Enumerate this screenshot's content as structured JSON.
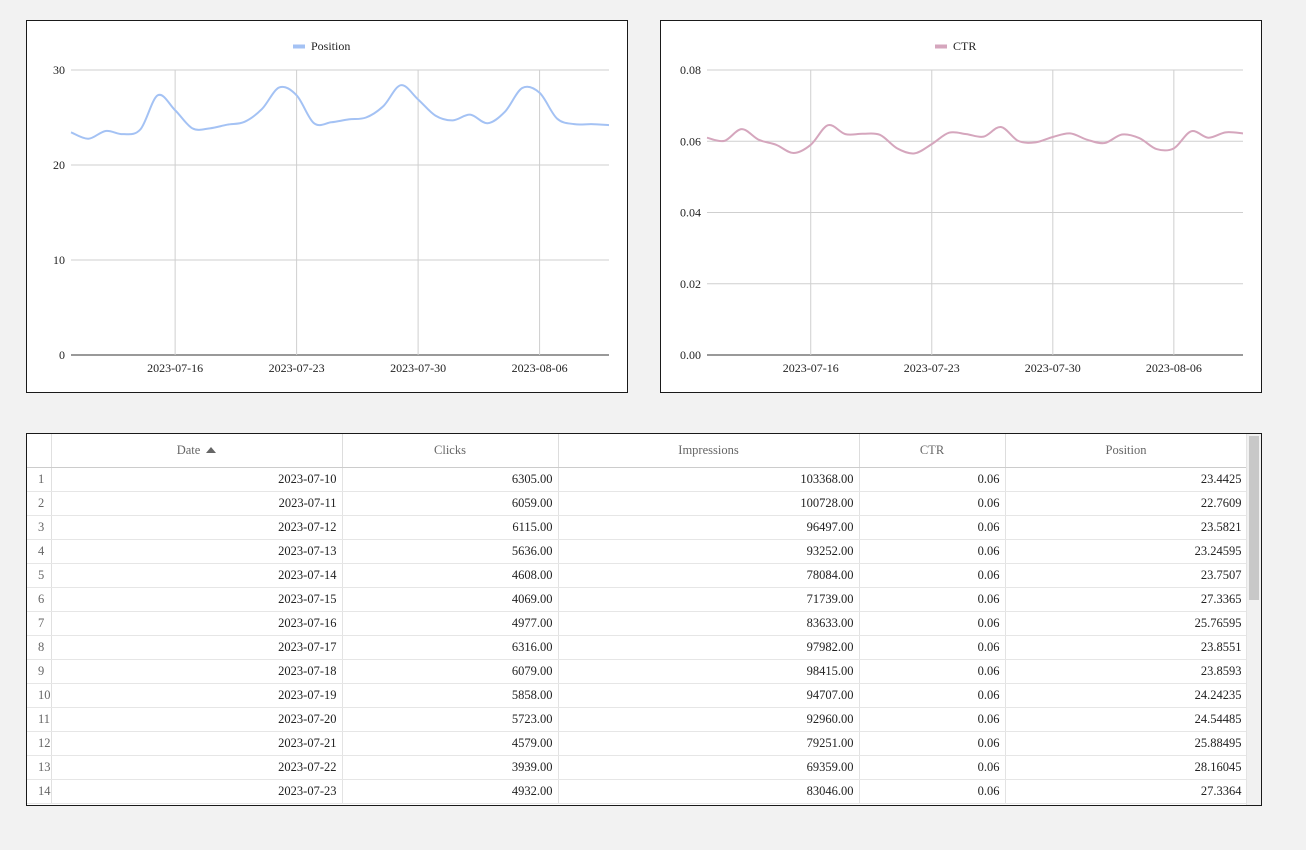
{
  "chart_data": [
    {
      "type": "line",
      "title": "",
      "xlabel": "",
      "ylabel": "",
      "series": [
        {
          "name": "Position",
          "color": "#a4c2f4",
          "x": [
            "2023-07-10",
            "2023-07-11",
            "2023-07-12",
            "2023-07-13",
            "2023-07-14",
            "2023-07-15",
            "2023-07-16",
            "2023-07-17",
            "2023-07-18",
            "2023-07-19",
            "2023-07-20",
            "2023-07-21",
            "2023-07-22",
            "2023-07-23",
            "2023-07-24",
            "2023-07-25",
            "2023-07-26",
            "2023-07-27",
            "2023-07-28",
            "2023-07-29",
            "2023-07-30",
            "2023-07-31",
            "2023-08-01",
            "2023-08-02",
            "2023-08-03",
            "2023-08-04",
            "2023-08-05",
            "2023-08-06",
            "2023-08-07",
            "2023-08-08",
            "2023-08-09",
            "2023-08-10"
          ],
          "values": [
            23.4425,
            22.7609,
            23.5821,
            23.24595,
            23.7507,
            27.3365,
            25.76595,
            23.8551,
            23.8593,
            24.24235,
            24.54485,
            25.88495,
            28.16045,
            27.3364,
            24.4,
            24.5,
            24.8,
            25.0,
            26.2,
            28.4,
            26.9,
            25.2,
            24.7,
            25.3,
            24.4,
            25.6,
            28.1,
            27.6,
            24.9,
            24.3,
            24.3,
            24.2
          ]
        }
      ],
      "ylim": [
        0,
        30
      ],
      "yticks": [
        "0",
        "10",
        "20",
        "30"
      ],
      "xticks": [
        "2023-07-16",
        "2023-07-23",
        "2023-07-30",
        "2023-08-06"
      ],
      "grid": true,
      "legend": "top-center"
    },
    {
      "type": "line",
      "title": "",
      "xlabel": "",
      "ylabel": "",
      "series": [
        {
          "name": "CTR",
          "color": "#d5a6bd",
          "x": [
            "2023-07-10",
            "2023-07-11",
            "2023-07-12",
            "2023-07-13",
            "2023-07-14",
            "2023-07-15",
            "2023-07-16",
            "2023-07-17",
            "2023-07-18",
            "2023-07-19",
            "2023-07-20",
            "2023-07-21",
            "2023-07-22",
            "2023-07-23",
            "2023-07-24",
            "2023-07-25",
            "2023-07-26",
            "2023-07-27",
            "2023-07-28",
            "2023-07-29",
            "2023-07-30",
            "2023-07-31",
            "2023-08-01",
            "2023-08-02",
            "2023-08-03",
            "2023-08-04",
            "2023-08-05",
            "2023-08-06",
            "2023-08-07",
            "2023-08-08",
            "2023-08-09",
            "2023-08-10"
          ],
          "values": [
            0.061,
            0.0601,
            0.0634,
            0.0604,
            0.059,
            0.0567,
            0.059,
            0.0645,
            0.062,
            0.0621,
            0.0618,
            0.058,
            0.0566,
            0.0592,
            0.0624,
            0.062,
            0.0613,
            0.064,
            0.0601,
            0.0597,
            0.0612,
            0.0622,
            0.0604,
            0.0595,
            0.0619,
            0.0609,
            0.0578,
            0.058,
            0.0628,
            0.061,
            0.0625,
            0.0622
          ]
        }
      ],
      "ylim": [
        0,
        0.08
      ],
      "yticks": [
        "0.00",
        "0.02",
        "0.04",
        "0.06",
        "0.08"
      ],
      "xticks": [
        "2023-07-16",
        "2023-07-23",
        "2023-07-30",
        "2023-08-06"
      ],
      "grid": true,
      "legend": "top-center"
    }
  ],
  "table": {
    "headers": [
      "Date",
      "Clicks",
      "Impressions",
      "CTR",
      "Position"
    ],
    "sorted_column": "Date",
    "sort_direction": "ascending",
    "rows": [
      [
        "1",
        "2023-07-10",
        "6305.00",
        "103368.00",
        "0.06",
        "23.4425"
      ],
      [
        "2",
        "2023-07-11",
        "6059.00",
        "100728.00",
        "0.06",
        "22.7609"
      ],
      [
        "3",
        "2023-07-12",
        "6115.00",
        "96497.00",
        "0.06",
        "23.5821"
      ],
      [
        "4",
        "2023-07-13",
        "5636.00",
        "93252.00",
        "0.06",
        "23.24595"
      ],
      [
        "5",
        "2023-07-14",
        "4608.00",
        "78084.00",
        "0.06",
        "23.7507"
      ],
      [
        "6",
        "2023-07-15",
        "4069.00",
        "71739.00",
        "0.06",
        "27.3365"
      ],
      [
        "7",
        "2023-07-16",
        "4977.00",
        "83633.00",
        "0.06",
        "25.76595"
      ],
      [
        "8",
        "2023-07-17",
        "6316.00",
        "97982.00",
        "0.06",
        "23.8551"
      ],
      [
        "9",
        "2023-07-18",
        "6079.00",
        "98415.00",
        "0.06",
        "23.8593"
      ],
      [
        "10",
        "2023-07-19",
        "5858.00",
        "94707.00",
        "0.06",
        "24.24235"
      ],
      [
        "11",
        "2023-07-20",
        "5723.00",
        "92960.00",
        "0.06",
        "24.54485"
      ],
      [
        "12",
        "2023-07-21",
        "4579.00",
        "79251.00",
        "0.06",
        "25.88495"
      ],
      [
        "13",
        "2023-07-22",
        "3939.00",
        "69359.00",
        "0.06",
        "28.16045"
      ],
      [
        "14",
        "2023-07-23",
        "4932.00",
        "83046.00",
        "0.06",
        "27.3364"
      ]
    ]
  },
  "icons": {
    "sort": "sort-ascending-icon"
  }
}
